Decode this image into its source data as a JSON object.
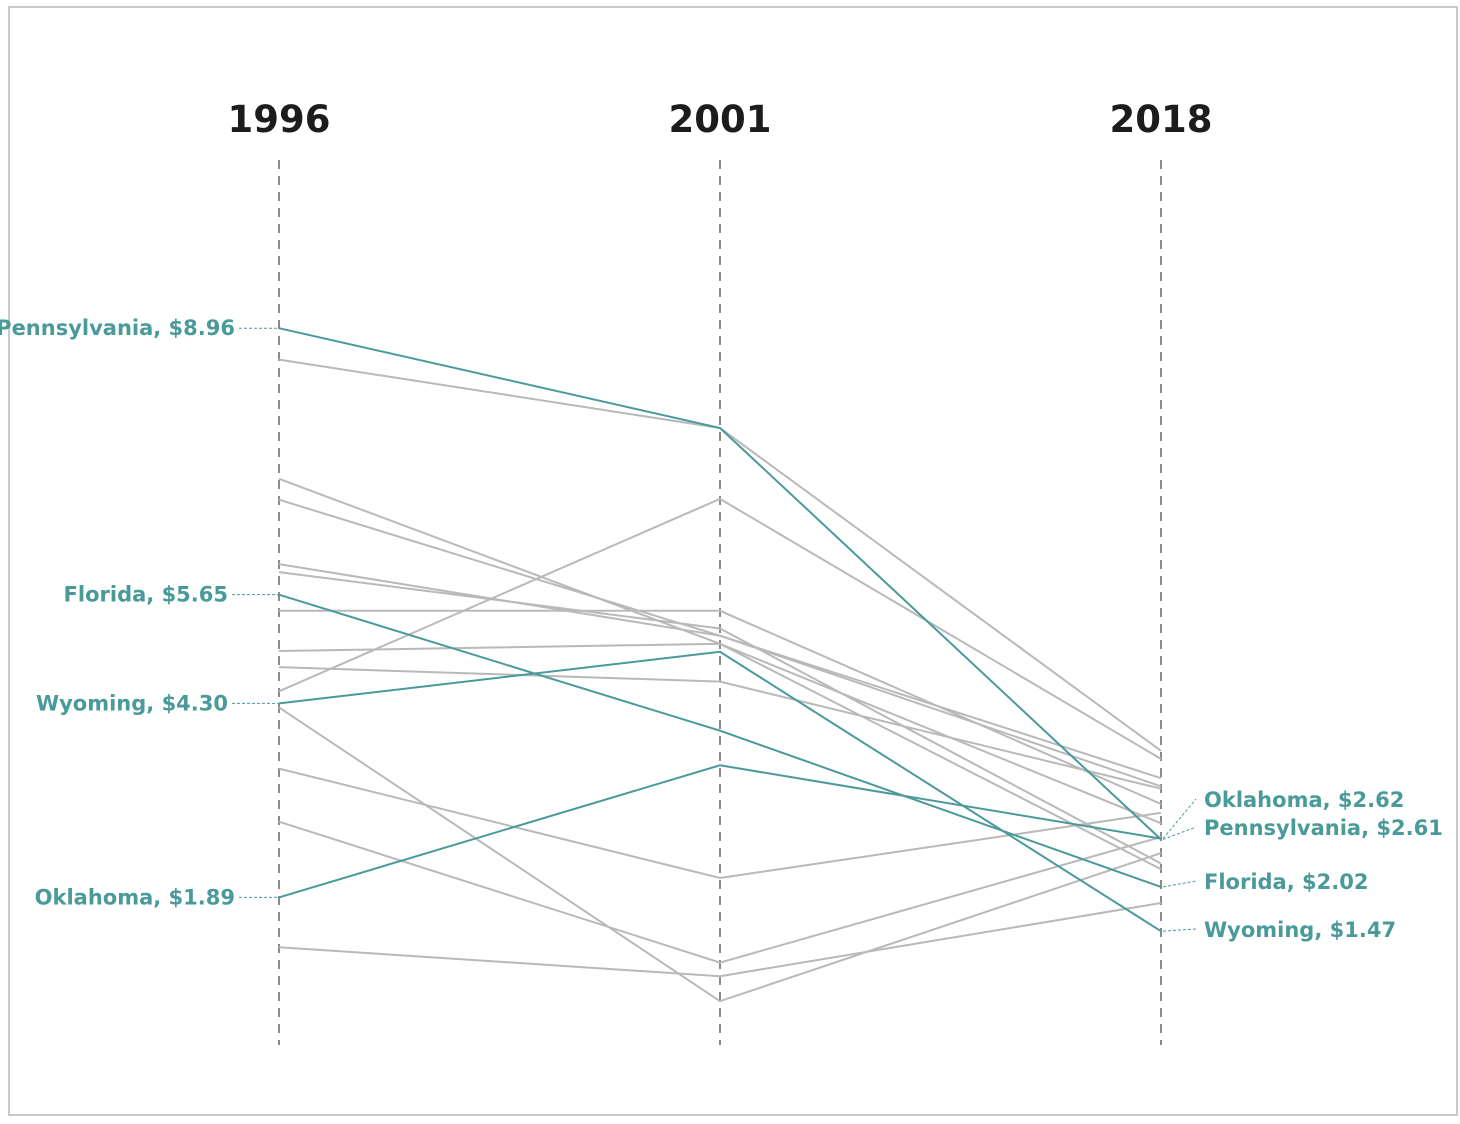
{
  "chart_data": {
    "type": "line",
    "title": "",
    "xlabel": "",
    "ylabel": "",
    "x": [
      "1996",
      "2001",
      "2018"
    ],
    "ylim": [
      0,
      11
    ],
    "colors": {
      "highlight": "#4a9a9a",
      "background": "#b9b9b9",
      "axis": "#8a8a8a"
    },
    "highlighted_series": [
      {
        "name": "Pennsylvania",
        "values": [
          8.96,
          7.72,
          2.61
        ],
        "label_1996": "Pennsylvania, $8.96",
        "label_2018": "Pennsylvania, $2.61"
      },
      {
        "name": "Florida",
        "values": [
          5.65,
          3.96,
          2.02
        ],
        "label_1996": "Florida, $5.65",
        "label_2018": "Florida, $2.02"
      },
      {
        "name": "Wyoming",
        "values": [
          4.3,
          4.94,
          1.47
        ],
        "label_1996": "Wyoming, $4.30",
        "label_2018": "Wyoming, $1.47"
      },
      {
        "name": "Oklahoma",
        "values": [
          1.89,
          3.53,
          2.62
        ],
        "label_1996": "Oklahoma, $1.89",
        "label_2018": "Oklahoma, $2.62"
      }
    ],
    "other_series": [
      {
        "values": [
          8.57,
          7.72,
          3.71
        ]
      },
      {
        "values": [
          7.09,
          5.04,
          2.81
        ]
      },
      {
        "values": [
          6.83,
          5.14,
          3.27
        ]
      },
      {
        "values": [
          6.03,
          5.14,
          3.37
        ]
      },
      {
        "values": [
          5.93,
          5.23,
          2.31
        ]
      },
      {
        "values": [
          5.45,
          5.45,
          3.05
        ]
      },
      {
        "values": [
          4.95,
          5.04,
          2.24
        ]
      },
      {
        "values": [
          4.75,
          4.57,
          3.24
        ]
      },
      {
        "values": [
          4.45,
          6.84,
          3.61
        ]
      },
      {
        "values": [
          4.25,
          0.6,
          2.44
        ]
      },
      {
        "values": [
          3.49,
          2.13,
          2.94
        ]
      },
      {
        "values": [
          2.83,
          1.08,
          2.64
        ]
      },
      {
        "values": [
          1.27,
          0.91,
          1.82
        ]
      }
    ]
  }
}
